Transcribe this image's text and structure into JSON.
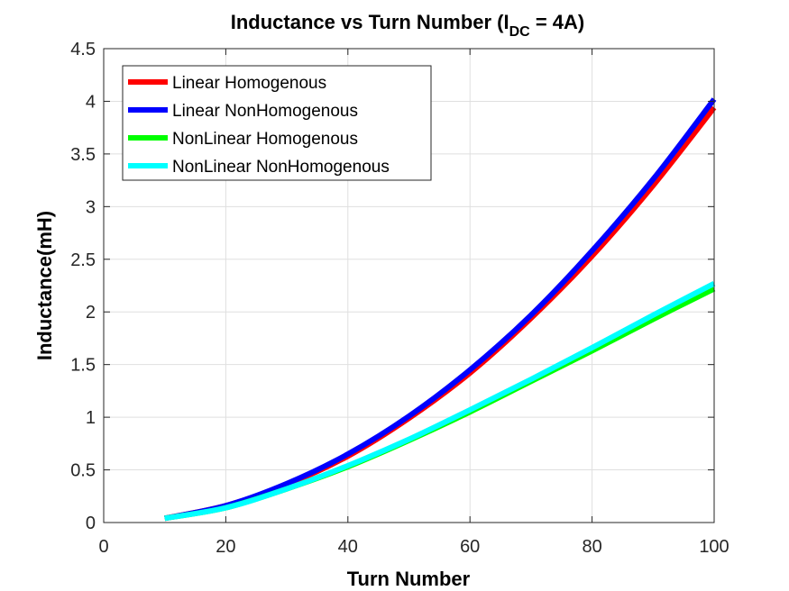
{
  "chart_data": {
    "type": "line",
    "title": {
      "main": "Inductance vs Turn Number (I",
      "subscript": "DC",
      "suffix": " = 4A)"
    },
    "xlabel": "Turn Number",
    "ylabel": "Inductance(mH)",
    "xlim": [
      0,
      100
    ],
    "ylim": [
      0,
      4.5
    ],
    "xticks": [
      0,
      20,
      40,
      60,
      80,
      100
    ],
    "yticks": [
      0,
      0.5,
      1,
      1.5,
      2,
      2.5,
      3,
      3.5,
      4,
      4.5
    ],
    "grid": true,
    "legend_position": "top-left",
    "x": [
      10,
      20,
      30,
      40,
      50,
      60,
      70,
      80,
      90,
      100
    ],
    "series": [
      {
        "name": "Linear Homogenous",
        "color": "#ff0000",
        "values": [
          0.04,
          0.16,
          0.36,
          0.63,
          0.99,
          1.42,
          1.94,
          2.53,
          3.2,
          3.94
        ]
      },
      {
        "name": "Linear NonHomogenous",
        "color": "#0000ff",
        "values": [
          0.04,
          0.16,
          0.37,
          0.65,
          1.01,
          1.45,
          1.97,
          2.58,
          3.26,
          4.02
        ]
      },
      {
        "name": "NonLinear Homogenous",
        "color": "#00ff00",
        "values": [
          0.04,
          0.14,
          0.32,
          0.53,
          0.78,
          1.05,
          1.34,
          1.63,
          1.93,
          2.22
        ]
      },
      {
        "name": "NonLinear NonHomogenous",
        "color": "#00ffff",
        "values": [
          0.04,
          0.14,
          0.32,
          0.54,
          0.79,
          1.07,
          1.36,
          1.66,
          1.97,
          2.27
        ]
      }
    ]
  }
}
